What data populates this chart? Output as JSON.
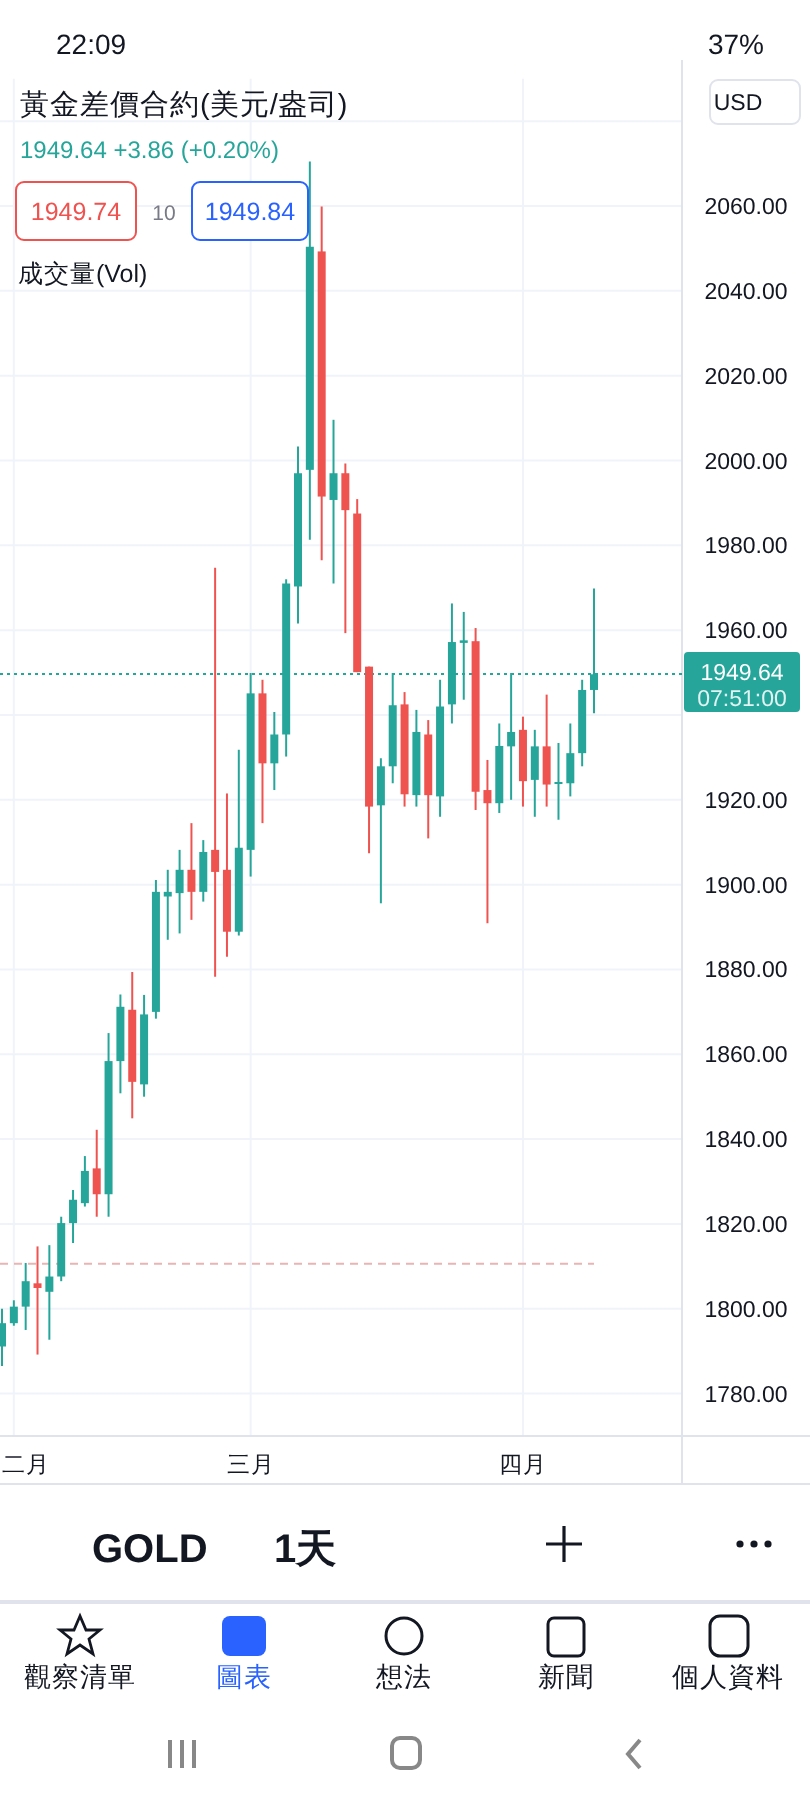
{
  "chart_data": {
    "type": "candlestick",
    "title": "黃金差價合約(美元/盎司)",
    "subtitle": "1949.64 +3.86 (+0.20%)",
    "categories": [
      null,
      "二月",
      null,
      null,
      null,
      null,
      null,
      null,
      null,
      null,
      null,
      null,
      null,
      null,
      null,
      null,
      null,
      null,
      null,
      null,
      null,
      "三月",
      null,
      null,
      null,
      null,
      null,
      null,
      null,
      null,
      null,
      null,
      null,
      null,
      null,
      null,
      null,
      null,
      null,
      null,
      null,
      null,
      null,
      null,
      "四月",
      null,
      null,
      null,
      null,
      null,
      null
    ],
    "ohlc": [
      [
        1791.1,
        1800.0,
        1786.5,
        1796.6
      ],
      [
        1796.6,
        1802.0,
        1796.0,
        1800.5
      ],
      [
        1800.5,
        1810.8,
        1795.0,
        1806.5
      ],
      [
        1806.0,
        1814.7,
        1789.2,
        1804.9
      ],
      [
        1804.0,
        1815.0,
        1792.7,
        1807.6
      ],
      [
        1807.6,
        1821.7,
        1806.5,
        1820.2
      ],
      [
        1820.2,
        1828.0,
        1815.5,
        1825.7
      ],
      [
        1824.9,
        1836.0,
        1824.1,
        1832.5
      ],
      [
        1833.1,
        1842.2,
        1821.7,
        1827.0
      ],
      [
        1827.0,
        1865.0,
        1821.7,
        1858.4
      ],
      [
        1858.4,
        1874.1,
        1850.8,
        1871.2
      ],
      [
        1870.5,
        1879.4,
        1844.9,
        1853.5
      ],
      [
        1852.9,
        1874.0,
        1850.0,
        1869.4
      ],
      [
        1870.0,
        1901.1,
        1868.4,
        1898.3
      ],
      [
        1897.2,
        1903.5,
        1887.0,
        1898.3
      ],
      [
        1898.0,
        1908.2,
        1888.5,
        1903.5
      ],
      [
        1903.5,
        1914.5,
        1891.7,
        1898.3
      ],
      [
        1898.3,
        1910.5,
        1896.0,
        1907.7
      ],
      [
        1908.2,
        1974.7,
        1878.3,
        1903.0
      ],
      [
        1903.5,
        1921.5,
        1883.0,
        1888.9
      ],
      [
        1888.9,
        1931.8,
        1888.0,
        1908.7
      ],
      [
        1908.2,
        1949.9,
        1901.9,
        1945.1
      ],
      [
        1945.1,
        1948.3,
        1914.5,
        1928.6
      ],
      [
        1928.6,
        1940.7,
        1922.3,
        1935.4
      ],
      [
        1935.4,
        1972.0,
        1930.2,
        1971.0
      ],
      [
        1970.3,
        2003.3,
        1961.6,
        1997.0
      ],
      [
        1997.8,
        2070.5,
        1981.3,
        2050.4
      ],
      [
        2049.3,
        2059.9,
        1976.5,
        1991.5
      ],
      [
        1990.7,
        2009.6,
        1971.0,
        1997.0
      ],
      [
        1997.0,
        1999.3,
        1959.3,
        1988.3
      ],
      [
        1987.5,
        1990.9,
        1950.1,
        1950.1
      ],
      [
        1951.4,
        1951.4,
        1907.4,
        1918.4
      ],
      [
        1918.7,
        1929.8,
        1895.6,
        1927.9
      ],
      [
        1927.9,
        1949.9,
        1923.9,
        1942.3
      ],
      [
        1942.5,
        1945.4,
        1918.4,
        1921.3
      ],
      [
        1921.1,
        1941.2,
        1918.4,
        1936.0
      ],
      [
        1935.4,
        1938.8,
        1910.9,
        1921.1
      ],
      [
        1920.8,
        1948.3,
        1916.0,
        1942.0
      ],
      [
        1942.5,
        1966.3,
        1938.0,
        1957.2
      ],
      [
        1957.0,
        1964.3,
        1943.6,
        1957.6
      ],
      [
        1957.4,
        1960.5,
        1917.6,
        1921.9
      ],
      [
        1922.3,
        1929.4,
        1890.9,
        1919.2
      ],
      [
        1919.2,
        1938.0,
        1916.9,
        1932.7
      ],
      [
        1932.6,
        1949.9,
        1920.0,
        1936.0
      ],
      [
        1936.5,
        1939.6,
        1918.4,
        1924.4
      ],
      [
        1924.7,
        1936.5,
        1916.0,
        1932.6
      ],
      [
        1932.6,
        1944.8,
        1918.4,
        1923.6
      ],
      [
        1923.9,
        1933.4,
        1915.3,
        1924.2
      ],
      [
        1923.9,
        1938.0,
        1920.8,
        1931.0
      ],
      [
        1931.0,
        1948.3,
        1927.9,
        1945.9
      ],
      [
        1945.9,
        1969.8,
        1940.4,
        1949.6
      ]
    ],
    "ylim": [
      1770,
      2090
    ],
    "yticks": [
      {
        "value": 1780,
        "label": "1780.00"
      },
      {
        "value": 1800,
        "label": "1800.00"
      },
      {
        "value": 1820,
        "label": "1820.00"
      },
      {
        "value": 1840,
        "label": "1840.00"
      },
      {
        "value": 1860,
        "label": "1860.00"
      },
      {
        "value": 1880,
        "label": "1880.00"
      },
      {
        "value": 1900,
        "label": "1900.00"
      },
      {
        "value": 1920,
        "label": "1920.00"
      },
      {
        "value": 1940,
        "label": null
      },
      {
        "value": 1960,
        "label": "1960.00"
      },
      {
        "value": 1980,
        "label": "1980.00"
      },
      {
        "value": 2000,
        "label": "2000.00"
      },
      {
        "value": 2020,
        "label": "2020.00"
      },
      {
        "value": 2040,
        "label": "2040.00"
      },
      {
        "value": 2060,
        "label": "2060.00"
      },
      {
        "value": 2080,
        "label": null
      }
    ],
    "grid": true,
    "ref_lines": [
      {
        "axis": "y",
        "value": 1949.64,
        "label": "1949.64",
        "color": "#26a69a",
        "line_style": "dotted"
      },
      {
        "axis": "y",
        "value": 1810.6,
        "color": "#e8b4b4",
        "line_style": "dashed"
      }
    ],
    "annotations": [
      "1949.74",
      "10",
      "1949.84",
      "成交量(Vol)",
      "USD",
      "07:51:00",
      "GOLD",
      "1天",
      "觀察清單",
      "圖表",
      "想法",
      "新聞",
      "個人資料",
      "22:09",
      "37%"
    ]
  }
}
